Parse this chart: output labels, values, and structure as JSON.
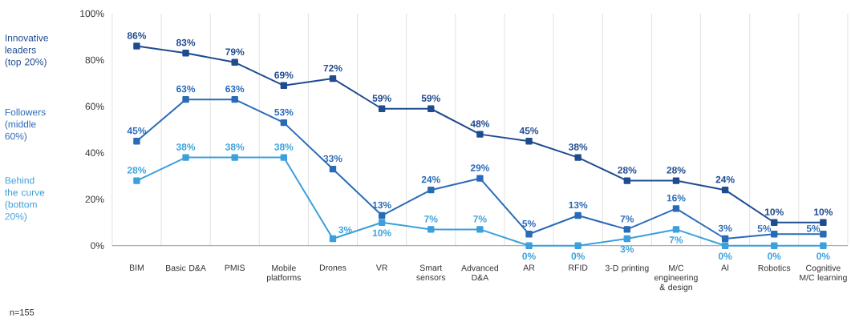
{
  "chart_data": {
    "type": "line",
    "categories": [
      "BIM",
      "Basic D&A",
      "PMIS",
      "Mobile platforms",
      "Drones",
      "VR",
      "Smart sensors",
      "Advanced D&A",
      "AR",
      "RFID",
      "3-D printing",
      "M/C engineering & design",
      "AI",
      "Robotics",
      "Cognitive M/C learning"
    ],
    "series": [
      {
        "name": "Innovative leaders (top 20%)",
        "color": "#1f4b8f",
        "values": [
          86,
          83,
          79,
          69,
          72,
          59,
          59,
          48,
          45,
          38,
          28,
          28,
          24,
          10,
          10
        ],
        "value_labels": [
          "86%",
          "83%",
          "79%",
          "69%",
          "72%",
          "59%",
          "59%",
          "48%",
          "45%",
          "38%",
          "28%",
          "28%",
          "24%",
          "10%",
          "10%"
        ]
      },
      {
        "name": "Followers (middle 60%)",
        "color": "#2a6bb8",
        "values": [
          45,
          63,
          63,
          53,
          33,
          13,
          24,
          29,
          5,
          13,
          7,
          16,
          3,
          5,
          5
        ],
        "value_labels": [
          "45%",
          "63%",
          "63%",
          "53%",
          "33%",
          "13%",
          "24%",
          "29%",
          "5%",
          "13%",
          "7%",
          "16%",
          "3%",
          "5%",
          "5%"
        ]
      },
      {
        "name": "Behind the curve (bottom 20%)",
        "color": "#3ba0dc",
        "values": [
          28,
          38,
          38,
          38,
          3,
          10,
          7,
          7,
          0,
          0,
          3,
          7,
          0,
          0,
          0
        ],
        "value_labels": [
          "28%",
          "38%",
          "38%",
          "38%",
          "3%",
          "10%",
          "7%",
          "7%",
          "0%",
          "0%",
          "3%",
          "7%",
          "0%",
          "0%",
          "0%"
        ]
      }
    ],
    "ylim": [
      0,
      100
    ],
    "yticks": [
      {
        "value": 0,
        "label": "0%"
      },
      {
        "value": 20,
        "label": "20%"
      },
      {
        "value": 40,
        "label": "40%"
      },
      {
        "value": 60,
        "label": "60%"
      },
      {
        "value": 80,
        "label": "80%"
      },
      {
        "value": 100,
        "label": "100%"
      }
    ],
    "grid": "x",
    "legend": "left",
    "marker": "square",
    "line_style": "solid",
    "annotations": [
      "n=155"
    ]
  }
}
